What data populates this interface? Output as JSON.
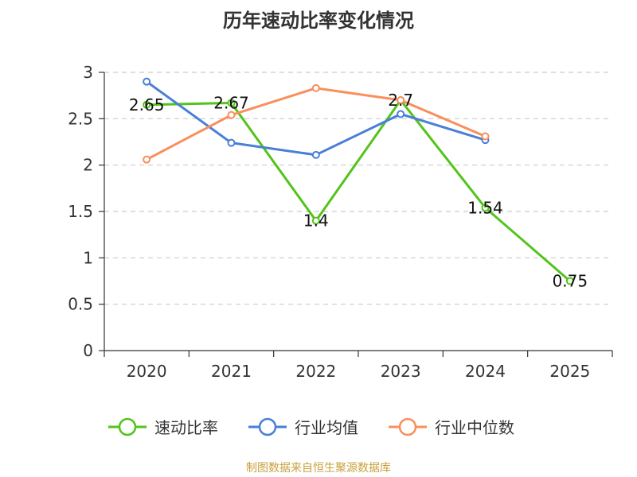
{
  "chart_data": {
    "type": "line",
    "title": "历年速动比率变化情况",
    "categories": [
      "2020",
      "2021",
      "2022",
      "2023",
      "2024",
      "2025"
    ],
    "ylim": [
      0,
      3
    ],
    "yticks": [
      "0",
      "0.5",
      "1",
      "1.5",
      "2",
      "2.5",
      "3"
    ],
    "grid": true,
    "legend_position": "bottom",
    "series": [
      {
        "name": "速动比率",
        "color": "#52c41a",
        "values": [
          2.65,
          2.67,
          1.4,
          2.7,
          1.54,
          0.75
        ],
        "labels": [
          "2.65",
          "2.67",
          "1.4",
          "2.7",
          "1.54",
          "0.75"
        ]
      },
      {
        "name": "行业均值",
        "color": "#4a7fd8",
        "values": [
          2.9,
          2.24,
          2.11,
          2.55,
          2.27,
          null
        ]
      },
      {
        "name": "行业中位数",
        "color": "#f98f5c",
        "values": [
          2.06,
          2.54,
          2.83,
          2.7,
          2.31,
          null
        ]
      }
    ]
  },
  "footer": "制图数据来自恒生聚源数据库"
}
